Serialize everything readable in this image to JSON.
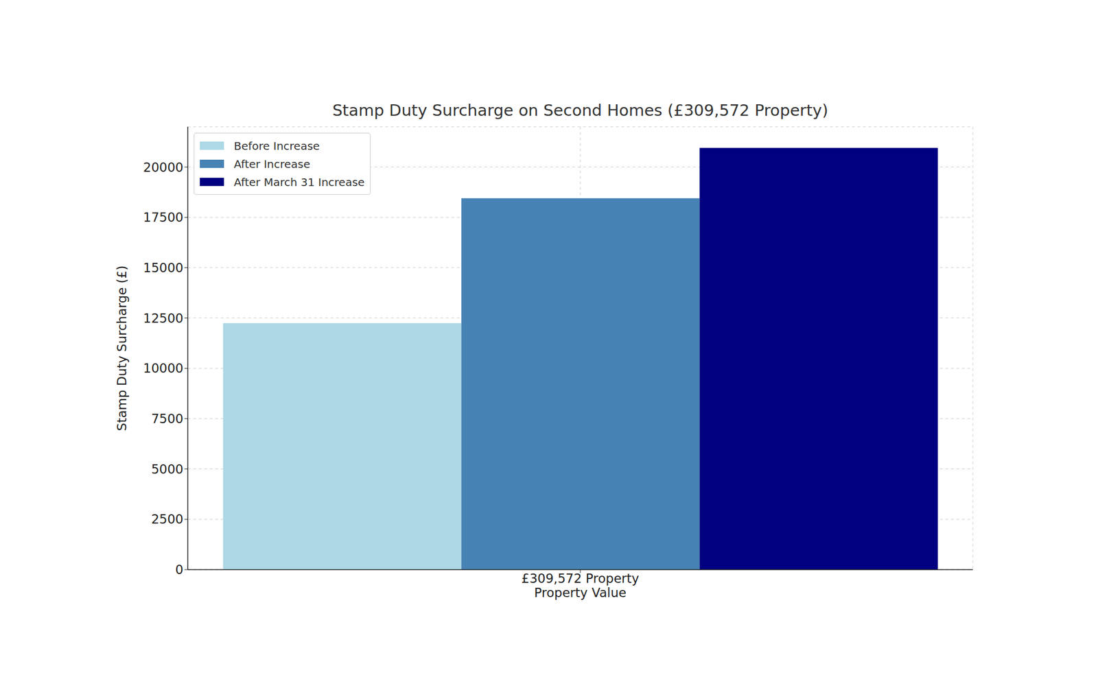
{
  "chart_data": {
    "type": "bar",
    "title": "Stamp Duty Surcharge on Second Homes (£309,572 Property)",
    "categories": [
      "£309,572 Property"
    ],
    "x_label": "Property Value",
    "y_label": "Stamp Duty Surcharge (£)",
    "series": [
      {
        "name": "Before Increase",
        "color": "#add8e6",
        "values": [
          12250
        ]
      },
      {
        "name": "After Increase",
        "color": "#4682b4",
        "values": [
          18450
        ]
      },
      {
        "name": "After March 31 Increase",
        "color": "#000080",
        "values": [
          20950
        ]
      }
    ],
    "ylim": [
      0,
      22000
    ],
    "yticks": [
      0,
      2500,
      5000,
      7500,
      10000,
      12500,
      15000,
      17500,
      20000
    ],
    "grid": true,
    "legend": "upper left"
  }
}
